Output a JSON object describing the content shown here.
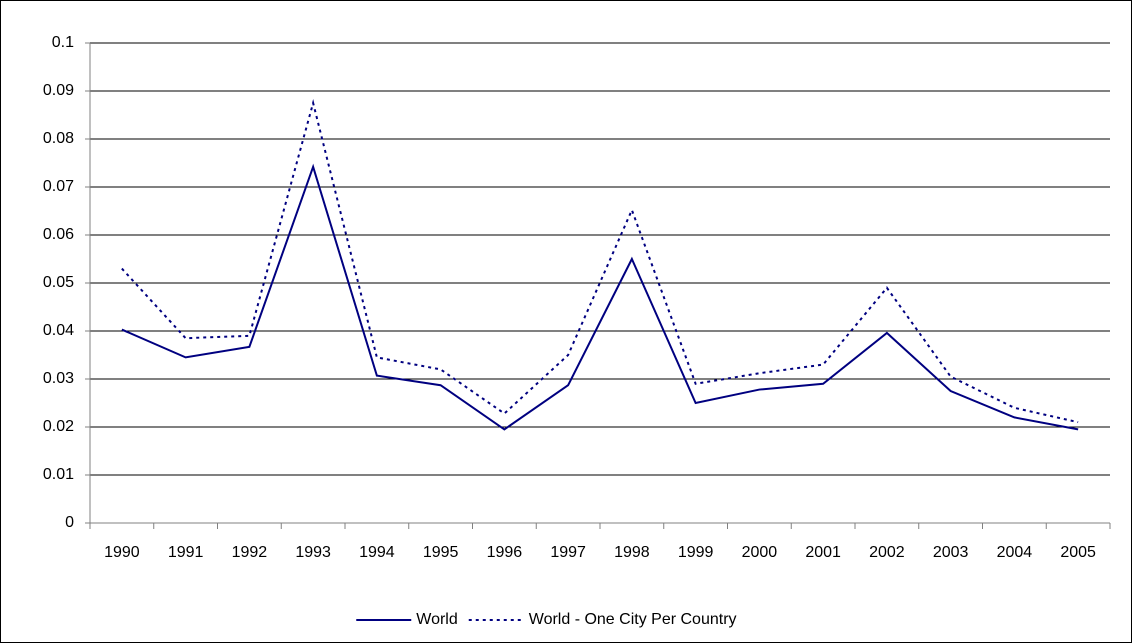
{
  "chart_data": {
    "type": "line",
    "categories": [
      "1990",
      "1991",
      "1992",
      "1993",
      "1994",
      "1995",
      "1996",
      "1997",
      "1998",
      "1999",
      "2000",
      "2001",
      "2002",
      "2003",
      "2004",
      "2005"
    ],
    "series": [
      {
        "name": "World",
        "color": "#000080",
        "dash": "solid",
        "values": [
          0.0403,
          0.0345,
          0.0367,
          0.0742,
          0.0307,
          0.0287,
          0.0195,
          0.0287,
          0.055,
          0.025,
          0.0278,
          0.029,
          0.0396,
          0.0275,
          0.022,
          0.0195
        ]
      },
      {
        "name": "World - One City Per Country",
        "color": "#000080",
        "dash": "dotted",
        "values": [
          0.053,
          0.0385,
          0.039,
          0.0875,
          0.0345,
          0.032,
          0.0228,
          0.035,
          0.0652,
          0.029,
          0.0312,
          0.033,
          0.049,
          0.0305,
          0.024,
          0.021
        ]
      }
    ],
    "ylim": [
      0,
      0.1
    ],
    "yticks": [
      0,
      0.01,
      0.02,
      0.03,
      0.04,
      0.05,
      0.06,
      0.07,
      0.08,
      0.09,
      0.1
    ],
    "grid": true,
    "legend": "bottom"
  }
}
